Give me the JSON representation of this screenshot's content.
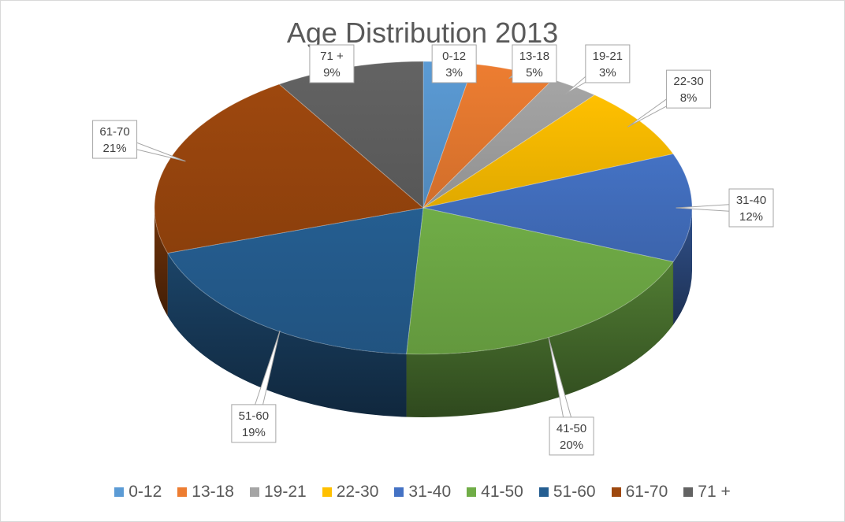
{
  "chart_data": {
    "type": "pie",
    "title": "Age Distribution 2013",
    "categories": [
      "0-12",
      "13-18",
      "19-21",
      "22-30",
      "31-40",
      "41-50",
      "51-60",
      "61-70",
      "71 +"
    ],
    "values": [
      3,
      5,
      3,
      8,
      12,
      20,
      19,
      21,
      9
    ],
    "value_labels": [
      "3%",
      "5%",
      "3%",
      "8%",
      "12%",
      "20%",
      "19%",
      "21%",
      "9%"
    ],
    "colors": [
      "#5b9bd5",
      "#ed7d31",
      "#a5a5a5",
      "#ffc000",
      "#4472c4",
      "#70ad47",
      "#255e91",
      "#9e480e",
      "#636363"
    ],
    "style": "3d",
    "legend_position": "bottom"
  }
}
